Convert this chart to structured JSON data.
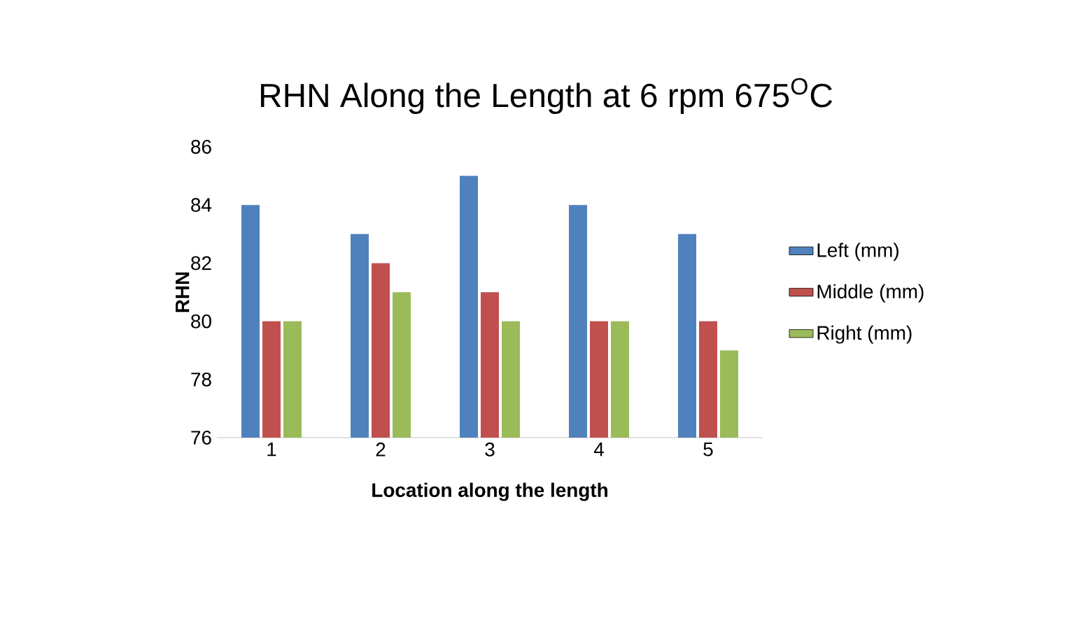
{
  "chart_data": {
    "type": "bar",
    "title": "RHN Along the Length at 6 rpm 675$^{O}$C",
    "xlabel": "Location along the length",
    "ylabel": "RHN",
    "categories": [
      "1",
      "2",
      "3",
      "4",
      "5"
    ],
    "series": [
      {
        "name": "Left (mm)",
        "color": "#4f81bd",
        "values": [
          84,
          83,
          85,
          84,
          83
        ]
      },
      {
        "name": "Middle (mm)",
        "color": "#c0504d",
        "values": [
          80,
          82,
          81,
          80,
          80
        ]
      },
      {
        "name": "Right (mm)",
        "color": "#9bbb59",
        "values": [
          80,
          81,
          80,
          80,
          79
        ]
      }
    ],
    "ylim": [
      76,
      86
    ],
    "yticks": [
      76,
      78,
      80,
      82,
      84,
      86
    ],
    "legend": "right"
  }
}
